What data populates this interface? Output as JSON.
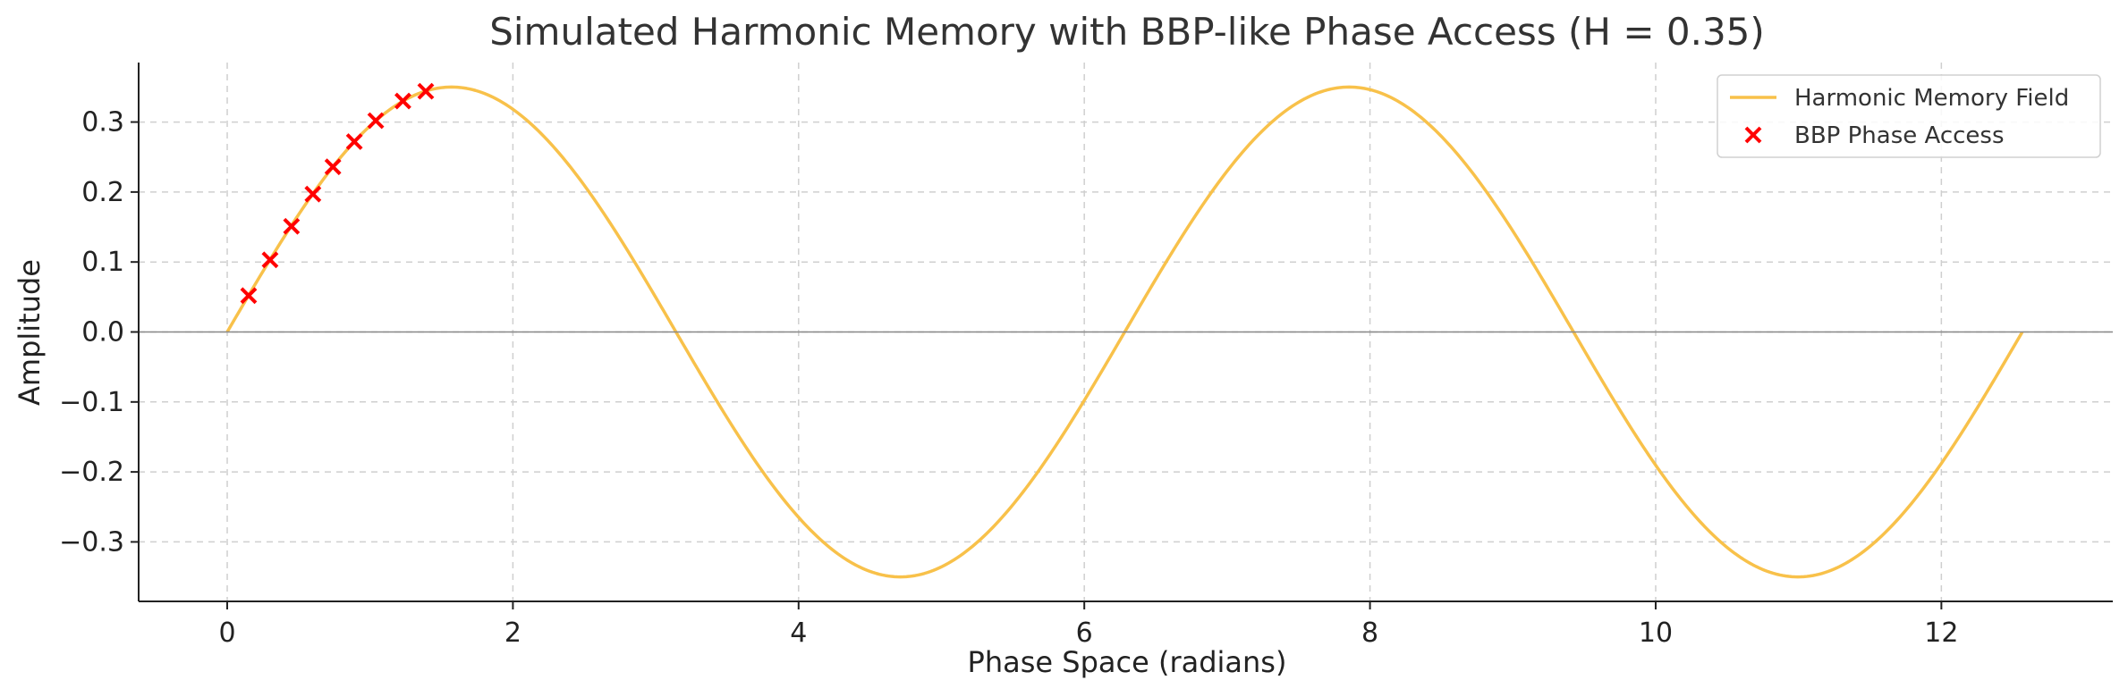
{
  "chart_data": {
    "type": "line",
    "title": "Simulated Harmonic Memory with BBP-like Phase Access (H = 0.35)",
    "xlabel": "Phase Space (radians)",
    "ylabel": "Amplitude",
    "xlim": [
      -0.62,
      13.2
    ],
    "ylim": [
      -0.385,
      0.385
    ],
    "xticks": [
      0,
      2,
      4,
      6,
      8,
      10,
      12
    ],
    "xtick_labels": [
      "0",
      "2",
      "4",
      "6",
      "8",
      "10",
      "12"
    ],
    "yticks": [
      -0.3,
      -0.2,
      -0.1,
      0.0,
      0.1,
      0.2,
      0.3
    ],
    "ytick_labels": [
      "−0.3",
      "−0.2",
      "−0.1",
      "0.0",
      "0.1",
      "0.2",
      "0.3"
    ],
    "grid": true,
    "legend_position": "top-right",
    "zero_line": true,
    "series": [
      {
        "name": "Harmonic Memory Field",
        "kind": "line",
        "color": "#f8c14a",
        "function": "0.35*sin(x)",
        "x_range": [
          0,
          12.566
        ],
        "x": [
          0,
          1.5708,
          3.1416,
          4.7124,
          6.2832,
          7.854,
          9.4248,
          10.9956,
          12.566
        ],
        "y": [
          0,
          0.35,
          0,
          -0.35,
          0,
          0.35,
          0,
          -0.35,
          0
        ]
      },
      {
        "name": "BBP Phase Access",
        "kind": "scatter",
        "marker": "x",
        "color": "#ff0000",
        "x": [
          0.15,
          0.3,
          0.45,
          0.6,
          0.74,
          0.89,
          1.04,
          1.23,
          1.39
        ],
        "y": [
          0.052,
          0.103,
          0.151,
          0.197,
          0.236,
          0.272,
          0.302,
          0.33,
          0.344
        ]
      }
    ]
  }
}
